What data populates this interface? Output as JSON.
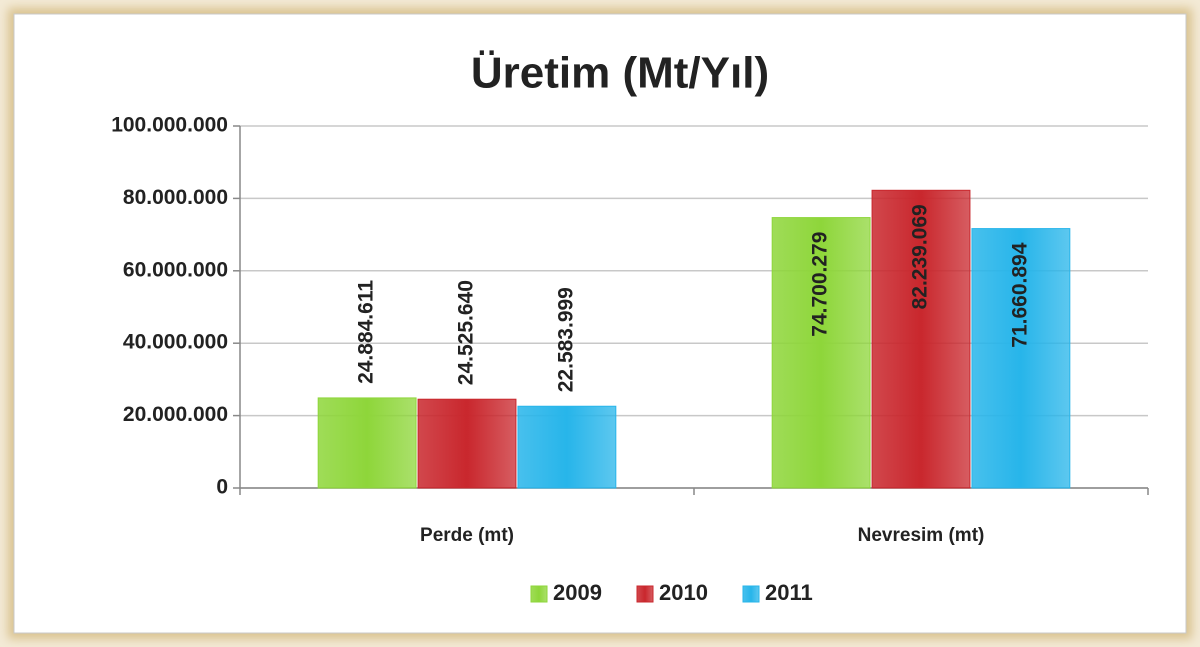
{
  "chart_data": {
    "type": "bar",
    "title": "Üretim (Mt/Yıl)",
    "categories": [
      "Perde (mt)",
      "Nevresim (mt)"
    ],
    "series": [
      {
        "name": "2009",
        "color": "#8ed63a",
        "label_color": "#000000",
        "values": [
          24884611,
          74700279
        ],
        "value_labels": [
          "24.884.611",
          "74.700.279"
        ]
      },
      {
        "name": "2010",
        "color": "#c9272d",
        "label_color": "#ffffff",
        "values": [
          24525640,
          82239069
        ],
        "value_labels": [
          "24.525.640",
          "82.239.069"
        ]
      },
      {
        "name": "2011",
        "color": "#27b5ea",
        "label_color": "#ffffff",
        "values": [
          22583999,
          71660894
        ],
        "value_labels": [
          "22.583.999",
          "71.660.894"
        ]
      }
    ],
    "ylim": [
      0,
      100000000
    ],
    "yticks": [
      0,
      {
        "value": 20000000,
        "label": "20.000.000"
      },
      {
        "value": 40000000,
        "label": "40.000.000"
      },
      {
        "value": 60000000,
        "label": "60.000.000"
      },
      {
        "value": 80000000,
        "label": "80.000.000"
      },
      {
        "value": 100000000,
        "label": "100.000.000"
      }
    ],
    "grid": true,
    "legend": "bottom"
  }
}
